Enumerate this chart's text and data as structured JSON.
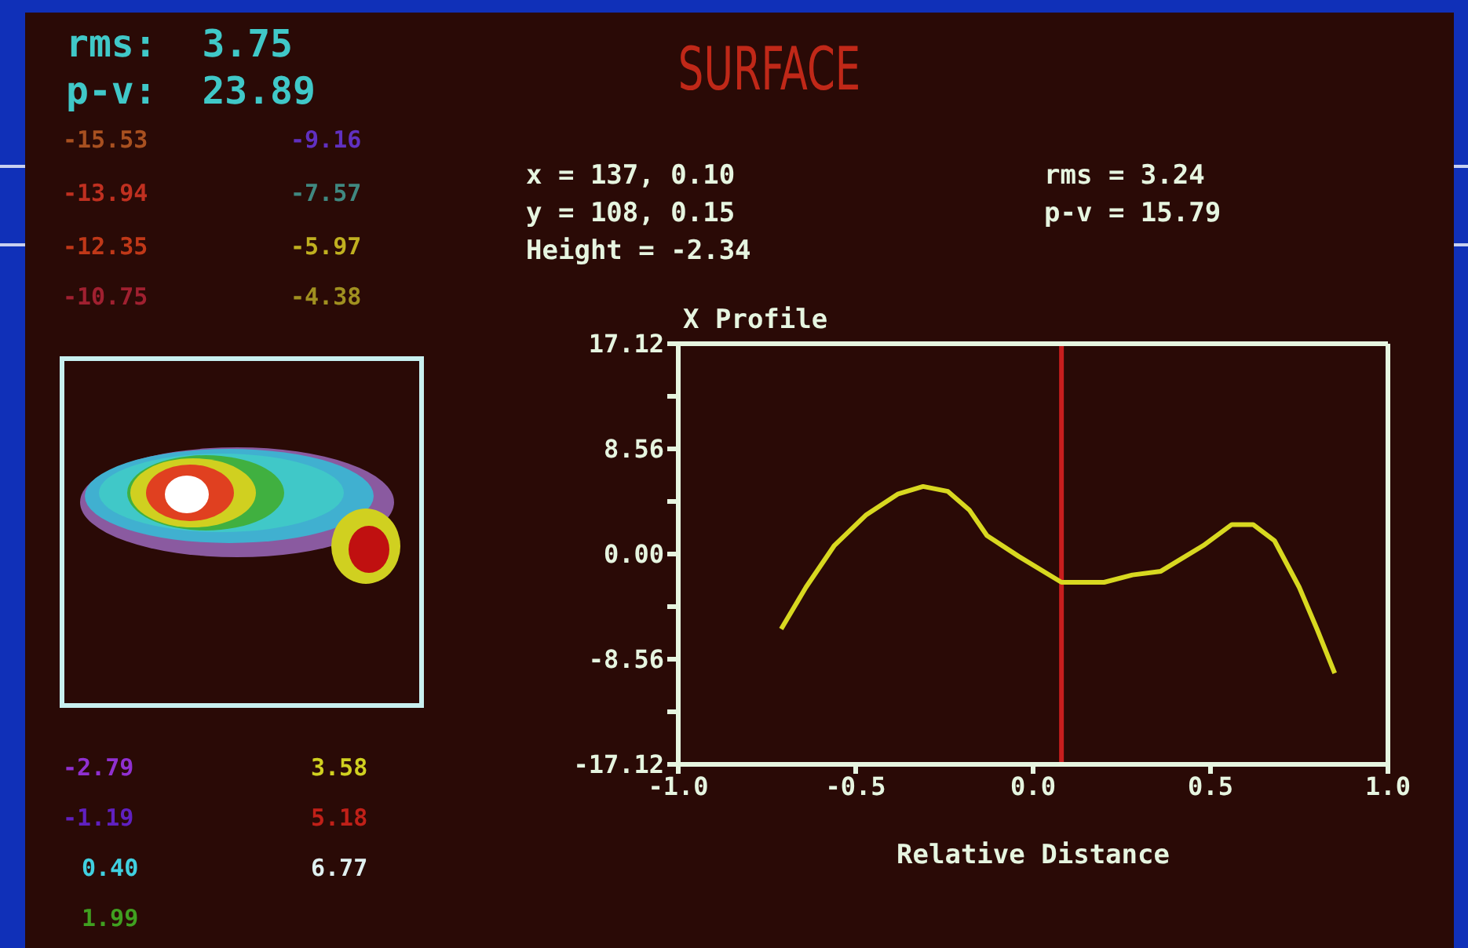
{
  "chart_data": {
    "type": "line",
    "title": "SURFACE",
    "subtitle": "X Profile",
    "xlabel": "Relative Distance",
    "x": [
      -0.71,
      -0.64,
      -0.56,
      -0.47,
      -0.38,
      -0.31,
      -0.24,
      -0.18,
      -0.13,
      -0.04,
      0.08,
      0.2,
      0.28,
      0.36,
      0.48,
      0.56,
      0.62,
      0.68,
      0.75,
      0.8,
      0.85
    ],
    "series": [
      {
        "color": "#d8d820",
        "values": [
          -6.1,
          -2.7,
          0.7,
          3.2,
          4.9,
          5.5,
          5.1,
          3.6,
          1.5,
          -0.2,
          -2.3,
          -2.3,
          -1.7,
          -1.4,
          0.7,
          2.4,
          2.4,
          1.1,
          -2.7,
          -6.1,
          -9.7
        ]
      }
    ],
    "xlim": [
      -1,
      1
    ],
    "xticks": [
      {
        "value": -1,
        "label": "-1.0"
      },
      {
        "value": -0.5,
        "label": "-0.5"
      },
      {
        "value": 0,
        "label": "0.0"
      },
      {
        "value": 0.5,
        "label": "0.5"
      },
      {
        "value": 1,
        "label": "1.0"
      }
    ],
    "ylim": [
      -17.12,
      17.12
    ],
    "yticks": [
      -17.12,
      {
        "value": -12.84,
        "label": null
      },
      -8.56,
      {
        "value": -4.28,
        "label": null
      },
      {
        "value": 0,
        "label": "0.00"
      },
      {
        "value": 4.28,
        "label": null
      },
      8.56,
      {
        "value": 12.84,
        "label": null
      },
      17.12
    ],
    "ref_lines": [
      {
        "axis": "x",
        "value": 0.08,
        "color": "#c81e1e"
      }
    ],
    "annotations": [
      "rms:  3.75",
      "p-v:  23.89",
      "-15.53",
      "-13.94",
      "-12.35",
      "-10.75",
      "-9.16",
      "-7.57",
      "-5.97",
      "-4.38",
      "-2.79",
      "-1.19",
      "0.40",
      "1.99",
      "3.58",
      "5.18",
      "6.77",
      "x = 137, 0.10",
      "y = 108, 0.15",
      "Height = -2.34",
      "rms = 3.24",
      "p-v = 15.79"
    ],
    "grid": false,
    "legend": false,
    "marker": "none",
    "line_style": "solid"
  }
}
